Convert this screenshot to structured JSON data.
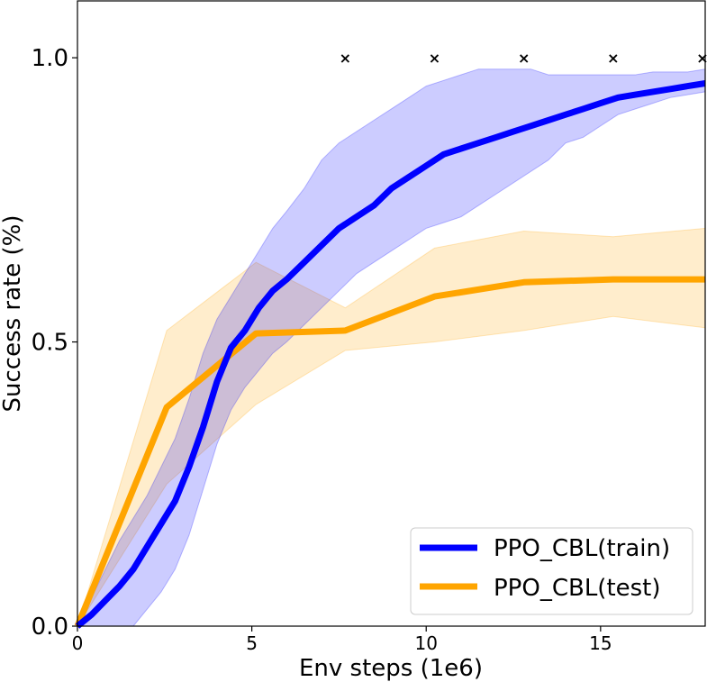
{
  "chart_data": {
    "type": "line",
    "title": "",
    "xlabel": "Env steps (1e6)",
    "ylabel": "Success rate (%)",
    "xlim": [
      0,
      18
    ],
    "ylim": [
      0,
      1.1
    ],
    "x_ticks": [
      0,
      5,
      10,
      15
    ],
    "y_ticks": [
      0.0,
      0.5,
      1.0
    ],
    "x_tick_labels": [
      "0",
      "5",
      "10",
      "15"
    ],
    "y_tick_labels": [
      "0.0",
      "0.5",
      "1.0"
    ],
    "grid": false,
    "legend_position": "lower-right",
    "series": [
      {
        "name": "PPO_CBL(train)",
        "color": "#0000ff",
        "band_color": "#0000ff",
        "x": [
          0,
          0.4,
          0.8,
          1.2,
          1.6,
          2.0,
          2.4,
          2.8,
          3.2,
          3.6,
          4.0,
          4.4,
          4.8,
          5.2,
          5.6,
          6.0,
          6.5,
          7.0,
          7.5,
          8.0,
          8.5,
          9.0,
          9.5,
          10.0,
          10.5,
          11.0,
          11.5,
          12.0,
          12.5,
          13.0,
          13.5,
          14.0,
          14.5,
          15.0,
          15.5,
          16.0,
          16.5,
          17.0,
          17.5,
          18.0
        ],
        "y": [
          0.0,
          0.02,
          0.045,
          0.07,
          0.1,
          0.14,
          0.18,
          0.22,
          0.28,
          0.35,
          0.43,
          0.49,
          0.52,
          0.56,
          0.59,
          0.61,
          0.64,
          0.67,
          0.7,
          0.72,
          0.74,
          0.77,
          0.79,
          0.81,
          0.83,
          0.84,
          0.85,
          0.86,
          0.87,
          0.88,
          0.89,
          0.9,
          0.91,
          0.92,
          0.93,
          0.935,
          0.94,
          0.945,
          0.95,
          0.955
        ],
        "lower": [
          0.0,
          0.0,
          0.0,
          0.0,
          0.0,
          0.03,
          0.06,
          0.1,
          0.16,
          0.24,
          0.32,
          0.38,
          0.42,
          0.45,
          0.48,
          0.5,
          0.53,
          0.56,
          0.59,
          0.62,
          0.64,
          0.66,
          0.68,
          0.7,
          0.71,
          0.72,
          0.74,
          0.76,
          0.78,
          0.8,
          0.82,
          0.85,
          0.86,
          0.88,
          0.9,
          0.91,
          0.92,
          0.93,
          0.935,
          0.94
        ],
        "upper": [
          0.0,
          0.05,
          0.1,
          0.15,
          0.19,
          0.23,
          0.28,
          0.33,
          0.4,
          0.48,
          0.54,
          0.58,
          0.62,
          0.66,
          0.7,
          0.73,
          0.77,
          0.82,
          0.85,
          0.87,
          0.89,
          0.91,
          0.93,
          0.95,
          0.96,
          0.97,
          0.98,
          0.98,
          0.98,
          0.98,
          0.97,
          0.97,
          0.97,
          0.97,
          0.97,
          0.97,
          0.975,
          0.975,
          0.975,
          0.98
        ]
      },
      {
        "name": "PPO_CBL(test)",
        "color": "#ffa500",
        "band_color": "#ffa500",
        "x": [
          0,
          2.56,
          5.12,
          7.68,
          10.24,
          12.8,
          15.36,
          18.0
        ],
        "y": [
          0.0,
          0.385,
          0.515,
          0.52,
          0.58,
          0.605,
          0.61,
          0.61
        ],
        "lower": [
          0.0,
          0.25,
          0.39,
          0.485,
          0.5,
          0.52,
          0.545,
          0.525
        ],
        "upper": [
          0.0,
          0.52,
          0.64,
          0.56,
          0.665,
          0.695,
          0.685,
          0.7
        ]
      }
    ],
    "annotations": {
      "marker": "×",
      "marker_y": 1.0,
      "marker_x": [
        7.68,
        10.24,
        12.8,
        15.36,
        17.92
      ]
    }
  }
}
